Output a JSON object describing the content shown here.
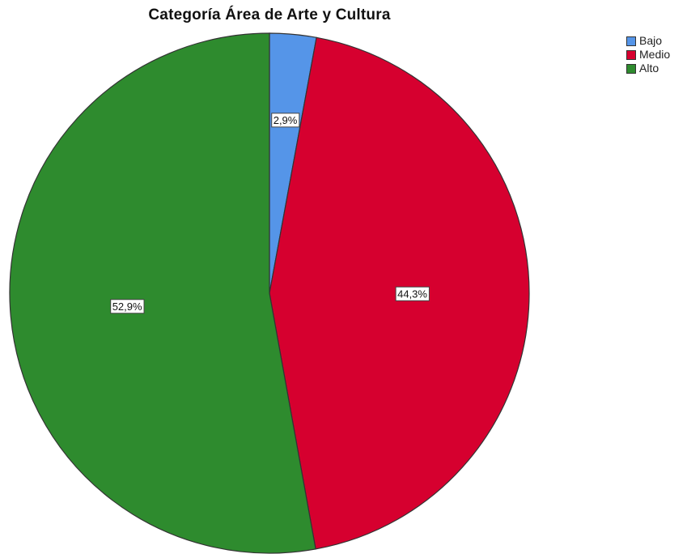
{
  "chart_data": {
    "type": "pie",
    "title": "Categoría Área de Arte y Cultura",
    "legend_position": "top-right",
    "start_angle_deg": 0,
    "direction": "clockwise",
    "slices": [
      {
        "label": "Bajo",
        "value": 2.9,
        "display": "2,9%",
        "color": "#5595e8"
      },
      {
        "label": "Medio",
        "value": 44.3,
        "display": "44,3%",
        "color": "#d6002f"
      },
      {
        "label": "Alto",
        "value": 52.9,
        "display": "52,9%",
        "color": "#2e8b2e"
      }
    ]
  }
}
